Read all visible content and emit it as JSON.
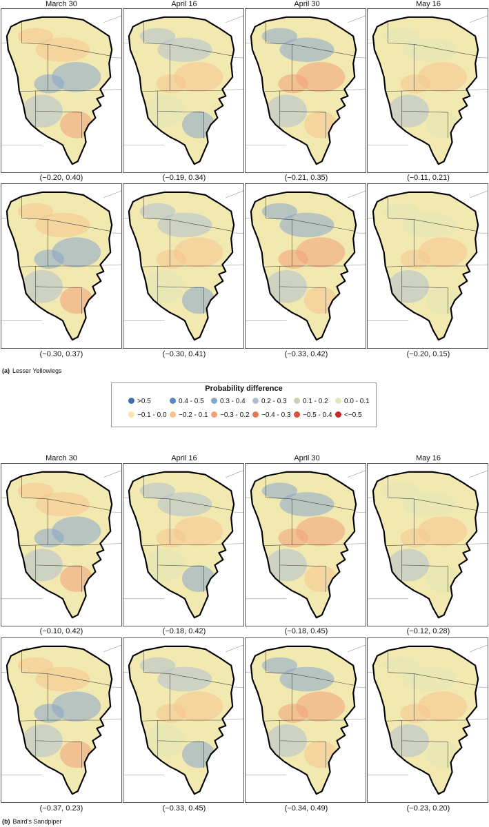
{
  "columns": [
    "March 30",
    "April 16",
    "April 30",
    "May 16"
  ],
  "species": [
    {
      "label": "(a)",
      "name": "Lesser Yellowlegs",
      "rows": [
        {
          "ranges": [
            "(−0.20, 0.40)",
            "(−0.19, 0.34)",
            "(−0.21, 0.35)",
            "(−0.11, 0.21)"
          ]
        },
        {
          "ranges": [
            "(−0.30, 0.37)",
            "(−0.30, 0.41)",
            "(−0.33, 0.42)",
            "(−0.20, 0.15)"
          ]
        }
      ]
    },
    {
      "label": "(b)",
      "name": "Baird’s Sandpiper",
      "rows": [
        {
          "ranges": [
            "(−0.10, 0.42)",
            "(−0.18, 0.42)",
            "(−0.18, 0.45)",
            "(−0.12, 0.28)"
          ]
        },
        {
          "ranges": [
            "(−0.37, 0.23)",
            "(−0.33, 0.45)",
            "(−0.34, 0.49)",
            "(−0.23, 0.20)"
          ]
        }
      ]
    }
  ],
  "legend": {
    "title": "Probability difference",
    "items": [
      {
        "label": ">0.5",
        "color": "#3d6fb0"
      },
      {
        "label": "0.4 - 0.5",
        "color": "#5b86bd"
      },
      {
        "label": "0.3 - 0.4",
        "color": "#86a6cc"
      },
      {
        "label": "0.2 - 0.3",
        "color": "#aebfcf"
      },
      {
        "label": "0.1 - 0.2",
        "color": "#c9d2b8"
      },
      {
        "label": "0.0 - 0.1",
        "color": "#e2e8b8"
      },
      {
        "label": "−0.1 - 0.0",
        "color": "#f8e6a9"
      },
      {
        "label": "−0.2 - 0.1",
        "color": "#f6c48e"
      },
      {
        "label": "−0.3 - 0.2",
        "color": "#f1a178"
      },
      {
        "label": "−0.4 - 0.3",
        "color": "#e67959"
      },
      {
        "label": "−0.5 - 0.4",
        "color": "#d9503d"
      },
      {
        "label": "<−0.5",
        "color": "#c42a25"
      }
    ]
  },
  "region_outline_color": "#000000",
  "base_fill_color": "#f2e9b0"
}
